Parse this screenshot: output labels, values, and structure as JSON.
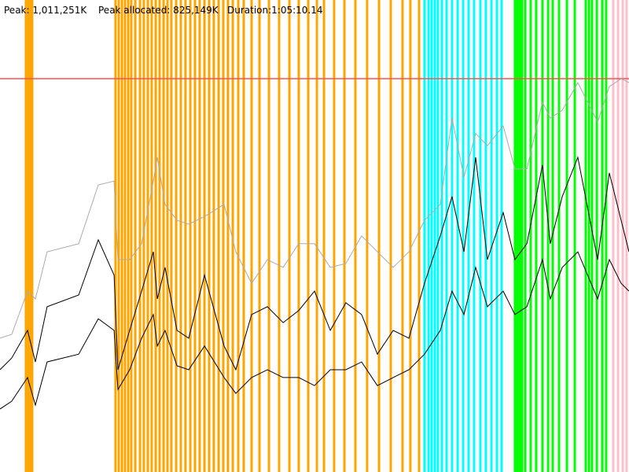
{
  "chart_data": {
    "type": "line",
    "header": {
      "peak": "Peak: 1,011,251K",
      "peak_allocated": "Peak allocated: 825,149K",
      "duration": "Duration:1:05:10.14"
    },
    "xlim": [
      0,
      3910
    ],
    "ylim": [
      0,
      1213500
    ],
    "peak_line": {
      "value": 1011251,
      "color": "#ff5050"
    },
    "x": [
      0,
      73,
      171,
      220,
      293,
      489,
      611,
      709,
      733,
      806,
      880,
      953,
      978,
      1026,
      1100,
      1173,
      1271,
      1393,
      1466,
      1564,
      1662,
      1760,
      1857,
      1955,
      2053,
      2150,
      2248,
      2346,
      2444,
      2542,
      2639,
      2737,
      2810,
      2884,
      2957,
      3030,
      3128,
      3201,
      3275,
      3372,
      3421,
      3495,
      3592,
      3715,
      3788,
      3861,
      3910
    ],
    "series": [
      {
        "color": "#aaaaaa",
        "values": [
          344000,
          354000,
          465000,
          445000,
          566000,
          587000,
          738000,
          748000,
          546000,
          546000,
          587000,
          748000,
          809000,
          688000,
          647000,
          637000,
          657000,
          688000,
          566000,
          485000,
          546000,
          526000,
          587000,
          587000,
          526000,
          536000,
          607000,
          566000,
          526000,
          566000,
          647000,
          688000,
          910000,
          758000,
          870000,
          839000,
          890000,
          779000,
          779000,
          951000,
          910000,
          930000,
          1001000,
          900000,
          991000,
          1011000,
          1001000
        ]
      },
      {
        "color": "#000000",
        "values": [
          263000,
          293000,
          364000,
          283000,
          425000,
          455000,
          597000,
          506000,
          263000,
          364000,
          465000,
          566000,
          445000,
          526000,
          364000,
          344000,
          506000,
          324000,
          263000,
          405000,
          425000,
          384000,
          415000,
          465000,
          364000,
          435000,
          405000,
          303000,
          364000,
          344000,
          485000,
          607000,
          708000,
          566000,
          809000,
          546000,
          667000,
          546000,
          587000,
          789000,
          587000,
          708000,
          809000,
          546000,
          769000,
          647000,
          566000
        ]
      },
      {
        "color": "#000000",
        "values": [
          162000,
          182000,
          243000,
          172000,
          283000,
          303000,
          394000,
          364000,
          212000,
          263000,
          344000,
          405000,
          324000,
          364000,
          273000,
          263000,
          324000,
          243000,
          202000,
          243000,
          263000,
          243000,
          243000,
          222000,
          263000,
          263000,
          283000,
          222000,
          243000,
          263000,
          303000,
          364000,
          465000,
          405000,
          526000,
          425000,
          465000,
          405000,
          425000,
          546000,
          445000,
          526000,
          566000,
          445000,
          546000,
          485000,
          465000
        ]
      }
    ],
    "events": [
      {
        "color": "#ffa500",
        "x": [
          161,
          176,
          191,
          200,
          718,
          738,
          758,
          777,
          797,
          816,
          841,
          870,
          894,
          919,
          943,
          968,
          992,
          1017,
          1041,
          1065,
          1095,
          1124,
          1153,
          1183,
          1212,
          1241,
          1271,
          1300,
          1329,
          1359,
          1388,
          1417,
          1447,
          1481,
          1515,
          1564,
          1613,
          1672,
          1735,
          1799,
          1857,
          1916,
          1970,
          2014,
          2077,
          2141,
          2209,
          2282,
          2356,
          2429,
          2502,
          2551,
          2605
        ]
      },
      {
        "color": "#00ffff",
        "x": [
          2639,
          2664,
          2683,
          2703,
          2722,
          2747,
          2776,
          2810,
          2845,
          2879,
          2913,
          2947,
          2986,
          3020,
          3055,
          3089,
          3118
        ]
      },
      {
        "color": "#00ff00",
        "x": [
          3201,
          3216,
          3231,
          3245,
          3265,
          3299,
          3333,
          3372,
          3407,
          3436,
          3475,
          3524,
          3573,
          3641,
          3661,
          3680,
          3710,
          3744,
          3768
        ]
      },
      {
        "color": "#ffc0cb",
        "x": [
          3812,
          3842,
          3871,
          3895
        ]
      }
    ]
  }
}
